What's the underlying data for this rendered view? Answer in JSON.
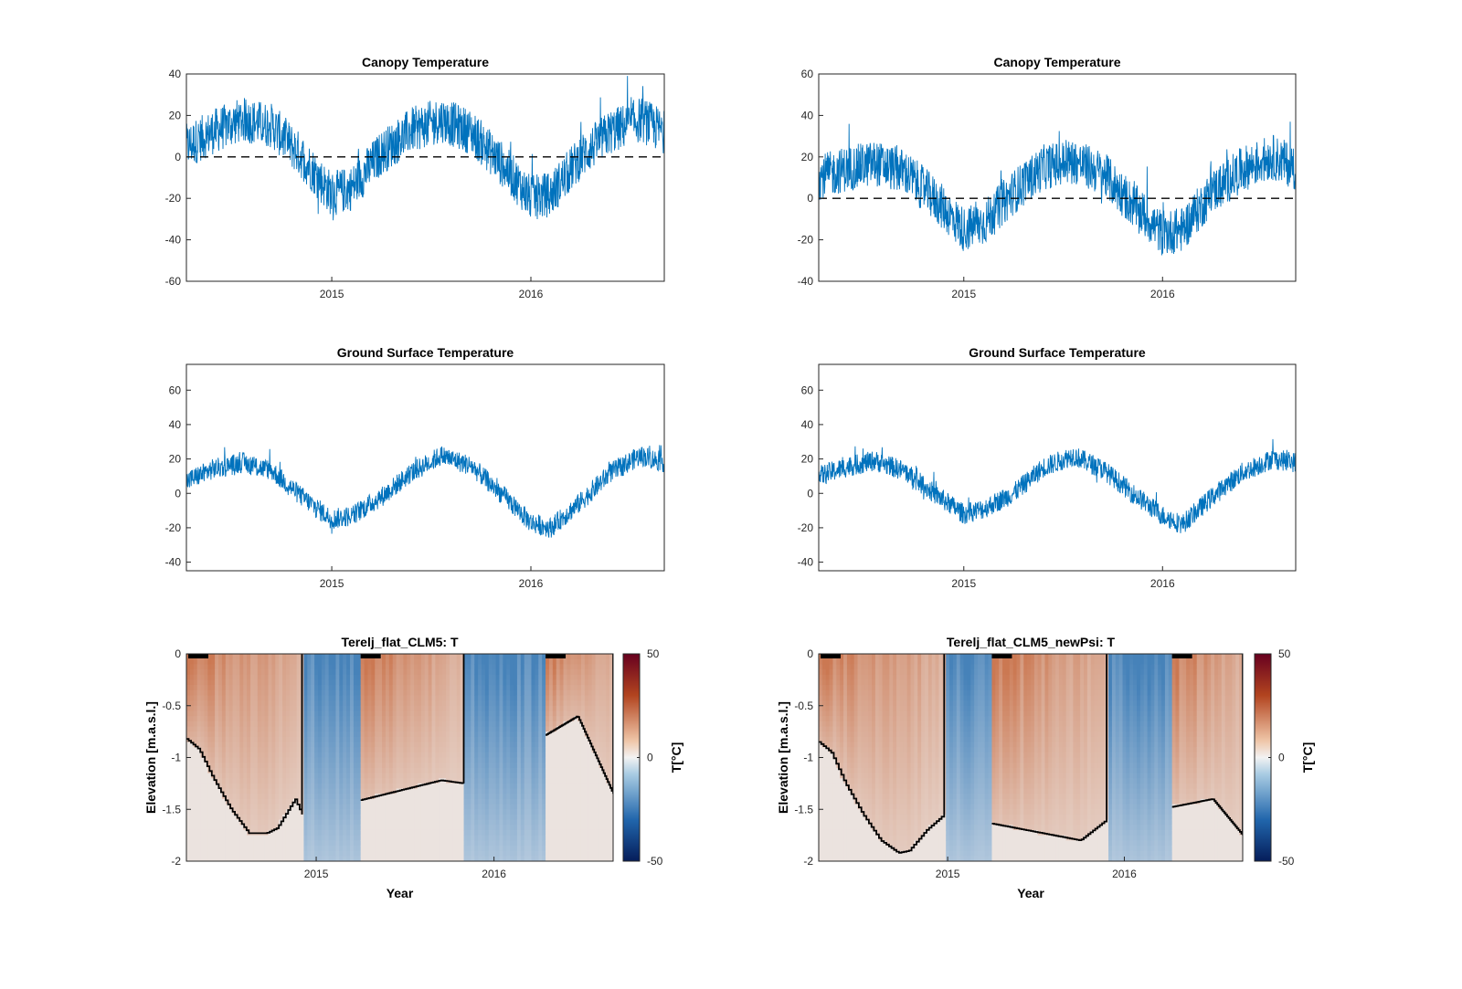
{
  "figure": {
    "background": "#ffffff",
    "line_color": "#0072BD",
    "zero_line_color": "#000000"
  },
  "chart_data": [
    {
      "type": "line",
      "title": "Canopy Temperature",
      "xlabel": "",
      "ylabel": "",
      "xlim": [
        2014.27,
        2016.67
      ],
      "ylim": [
        -60,
        40
      ],
      "yticks": [
        "-60",
        "-40",
        "-20",
        "0",
        "20",
        "40"
      ],
      "xticks": [
        "2015",
        "2016"
      ],
      "reference_line": {
        "y": 0,
        "style": "dashed"
      },
      "series": [
        {
          "x": [
            2014.27,
            2014.4,
            2014.55,
            2014.7,
            2014.85,
            2015.0,
            2015.1,
            2015.25,
            2015.4,
            2015.55,
            2015.7,
            2015.85,
            2016.0,
            2016.1,
            2016.25,
            2016.4,
            2016.55,
            2016.67
          ],
          "values": [
            5,
            12,
            18,
            15,
            0,
            -18,
            -15,
            2,
            13,
            18,
            12,
            -3,
            -20,
            -18,
            0,
            12,
            18,
            12
          ]
        }
      ]
    },
    {
      "type": "line",
      "title": "Canopy Temperature",
      "xlabel": "",
      "ylabel": "",
      "xlim": [
        2014.27,
        2016.67
      ],
      "ylim": [
        -40,
        60
      ],
      "yticks": [
        "-40",
        "-20",
        "0",
        "20",
        "40",
        "60"
      ],
      "xticks": [
        "2015",
        "2016"
      ],
      "reference_line": {
        "y": 0,
        "style": "dashed"
      },
      "series": [
        {
          "x": [
            2014.27,
            2014.4,
            2014.55,
            2014.7,
            2014.85,
            2015.0,
            2015.1,
            2015.25,
            2015.4,
            2015.55,
            2015.7,
            2015.85,
            2016.0,
            2016.1,
            2016.25,
            2016.4,
            2016.55,
            2016.67
          ],
          "values": [
            10,
            14,
            17,
            13,
            0,
            -15,
            -12,
            3,
            15,
            18,
            12,
            -3,
            -17,
            -15,
            3,
            14,
            20,
            15
          ]
        }
      ]
    },
    {
      "type": "line",
      "title": "Ground Surface Temperature",
      "xlabel": "",
      "ylabel": "",
      "xlim": [
        2014.27,
        2016.67
      ],
      "ylim": [
        -45,
        75
      ],
      "yticks": [
        "-40",
        "-20",
        "0",
        "20",
        "40",
        "60"
      ],
      "xticks": [
        "2015",
        "2016"
      ],
      "series": [
        {
          "x": [
            2014.27,
            2014.4,
            2014.55,
            2014.7,
            2014.85,
            2015.0,
            2015.1,
            2015.25,
            2015.4,
            2015.55,
            2015.7,
            2015.85,
            2016.0,
            2016.1,
            2016.25,
            2016.4,
            2016.55,
            2016.67
          ],
          "values": [
            7,
            14,
            18,
            13,
            -2,
            -15,
            -13,
            -2,
            12,
            22,
            16,
            0,
            -17,
            -20,
            -5,
            12,
            22,
            18
          ]
        }
      ]
    },
    {
      "type": "line",
      "title": "Ground Surface Temperature",
      "xlabel": "",
      "ylabel": "",
      "xlim": [
        2014.27,
        2016.67
      ],
      "ylim": [
        -45,
        75
      ],
      "yticks": [
        "-40",
        "-20",
        "0",
        "20",
        "40",
        "60"
      ],
      "xticks": [
        "2015",
        "2016"
      ],
      "series": [
        {
          "x": [
            2014.27,
            2014.4,
            2014.55,
            2014.7,
            2014.85,
            2015.0,
            2015.1,
            2015.25,
            2015.4,
            2015.55,
            2015.7,
            2015.85,
            2016.0,
            2016.1,
            2016.25,
            2016.4,
            2016.55,
            2016.67
          ],
          "values": [
            10,
            15,
            19,
            13,
            0,
            -12,
            -9,
            0,
            15,
            22,
            14,
            0,
            -13,
            -18,
            -2,
            12,
            20,
            18
          ]
        }
      ]
    },
    {
      "type": "heatmap",
      "title": "Terelj_flat_CLM5: T",
      "xlabel": "Year",
      "ylabel": "Elevation [m.a.s.l.]",
      "xlim": [
        2014.27,
        2016.67
      ],
      "ylim": [
        -2,
        0
      ],
      "yticks": [
        "-2",
        "-1.5",
        "-1",
        "-0.5",
        "0"
      ],
      "xticks": [
        "2015",
        "2016"
      ],
      "colorbar": {
        "label": "T[°C]",
        "min": -50,
        "max": 50,
        "ticks": [
          "50",
          "0",
          "-50"
        ]
      },
      "zero_contour_depth": {
        "x": [
          2014.27,
          2014.34,
          2014.42,
          2014.52,
          2014.62,
          2014.72,
          2014.78,
          2014.88,
          2014.92,
          2015.7,
          2015.83,
          2016.47,
          2016.67
        ],
        "values": [
          -0.82,
          -0.92,
          -1.2,
          -1.5,
          -1.73,
          -1.73,
          -1.68,
          -1.4,
          -1.55,
          -1.22,
          -1.25,
          -0.6,
          -1.35
        ]
      },
      "melt_season_x": [
        [
          2014.27,
          2014.92
        ],
        [
          2015.25,
          2015.83
        ],
        [
          2016.29,
          2016.67
        ]
      ]
    },
    {
      "type": "heatmap",
      "title": "Terelj_flat_CLM5_newPsi: T",
      "xlabel": "Year",
      "ylabel": "Elevation [m.a.s.l.]",
      "xlim": [
        2014.27,
        2016.67
      ],
      "ylim": [
        -2,
        0
      ],
      "yticks": [
        "-2",
        "-1.5",
        "-1",
        "-0.5",
        "0"
      ],
      "xticks": [
        "2015",
        "2016"
      ],
      "colorbar": {
        "label": "T[°C]",
        "min": -50,
        "max": 50,
        "ticks": [
          "50",
          "0",
          "-50"
        ]
      },
      "zero_contour_depth": {
        "x": [
          2014.27,
          2014.34,
          2014.42,
          2014.52,
          2014.62,
          2014.72,
          2014.78,
          2014.88,
          2014.98,
          2015.75,
          2015.9,
          2016.5,
          2016.67
        ],
        "values": [
          -0.85,
          -0.95,
          -1.25,
          -1.55,
          -1.8,
          -1.92,
          -1.9,
          -1.7,
          -1.55,
          -1.8,
          -1.6,
          -1.4,
          -1.75
        ]
      },
      "melt_season_x": [
        [
          2014.27,
          2014.98
        ],
        [
          2015.25,
          2015.9
        ],
        [
          2016.27,
          2016.67
        ]
      ]
    }
  ]
}
